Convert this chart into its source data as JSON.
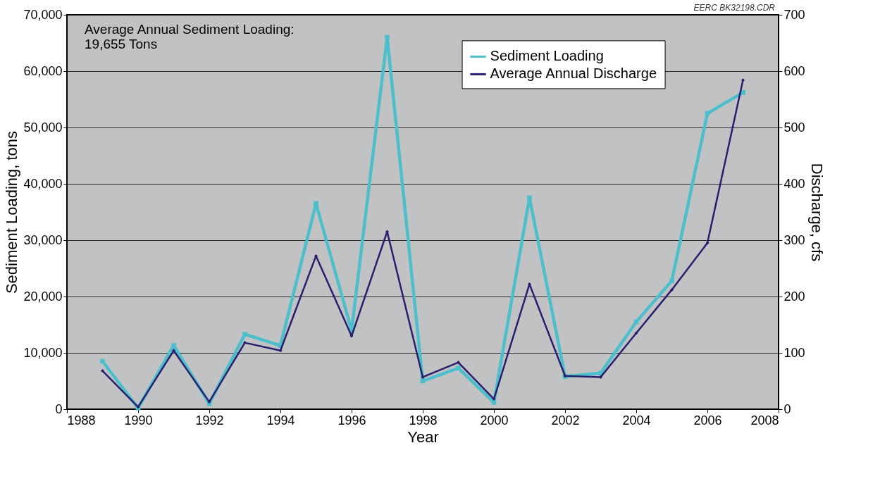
{
  "chart_data": {
    "type": "line",
    "xlabel": "Year",
    "ylabel": "Sediment Loading, tons",
    "y2label": "Discharge, cfs",
    "annotations": [
      "Average Annual Sediment Loading:\n19,655 Tons",
      "EERC BK32198.CDR"
    ],
    "x": [
      1989,
      1990,
      1991,
      1992,
      1993,
      1994,
      1995,
      1996,
      1997,
      1998,
      1999,
      2000,
      2001,
      2002,
      2003,
      2004,
      2005,
      2006,
      2007
    ],
    "series": [
      {
        "name": "Sediment Loading",
        "color": "#4dbfcc",
        "marker": "square",
        "values": [
          8500,
          200,
          11300,
          1000,
          13300,
          11300,
          36500,
          14000,
          66000,
          5000,
          7300,
          1200,
          37500,
          5800,
          6400,
          15500,
          22800,
          52500,
          56200
        ]
      },
      {
        "name": "Average Annual Discharge",
        "color": "#2a1f6e",
        "marker": "diamond",
        "axis": "y2",
        "values": [
          68,
          4,
          104,
          13,
          118,
          104,
          272,
          130,
          315,
          57,
          83,
          18,
          222,
          59,
          57,
          135,
          212,
          295,
          584
        ]
      }
    ],
    "xlim": [
      1988,
      2008
    ],
    "xticks": [
      1988,
      1990,
      1992,
      1994,
      1996,
      1998,
      2000,
      2002,
      2004,
      2006,
      2008
    ],
    "ylim": [
      0,
      70000
    ],
    "yticks": [
      0,
      {
        "value": 10000,
        "label": "10,000"
      },
      {
        "value": 20000,
        "label": "20,000"
      },
      {
        "value": 30000,
        "label": "30,000"
      },
      {
        "value": 40000,
        "label": "40,000"
      },
      {
        "value": 50000,
        "label": "50,000"
      },
      {
        "value": 60000,
        "label": "60,000"
      },
      {
        "value": 70000,
        "label": "70,000"
      }
    ],
    "y2lim": [
      0,
      700
    ],
    "y2ticks": [
      0,
      100,
      200,
      300,
      400,
      500,
      600,
      700
    ],
    "grid": "y",
    "legend": "top right",
    "line_style": "solid"
  }
}
